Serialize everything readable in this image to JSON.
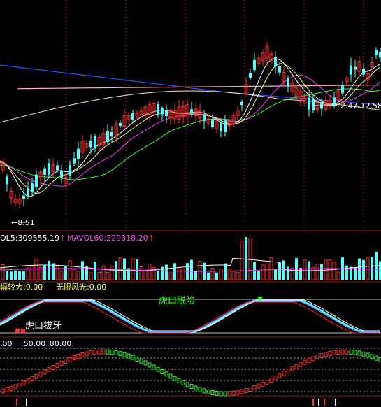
{
  "price_panel": {
    "low_marker": "8.51",
    "range_label": "12.47-12.58"
  },
  "volume_panel": {
    "vol_label": "OL5:309555.19",
    "mavol60_label": "MAVOL60:229318.20",
    "arrow": "↑"
  },
  "indicator_panel": {
    "label_left": "幅较大:0.00",
    "label_right": "无限风光:0.00",
    "annotation_top": "虎口脱险",
    "annotation_bottom": "虎口拔牙"
  },
  "lower_panel": {
    "labels": [
      ".00",
      ":50.00",
      ":80.00"
    ]
  },
  "colors": {
    "up": "#ff3030",
    "down": "#54ffff",
    "border": "#8b1a1a",
    "ma_white": "#ffffff",
    "ma_yellow": "#ffff80",
    "ma_magenta": "#ff40ff",
    "ma_green": "#30ff30",
    "ma_blue": "#3050ff",
    "ma_pink": "#ffb0c0",
    "grid": "#ff3030"
  }
}
